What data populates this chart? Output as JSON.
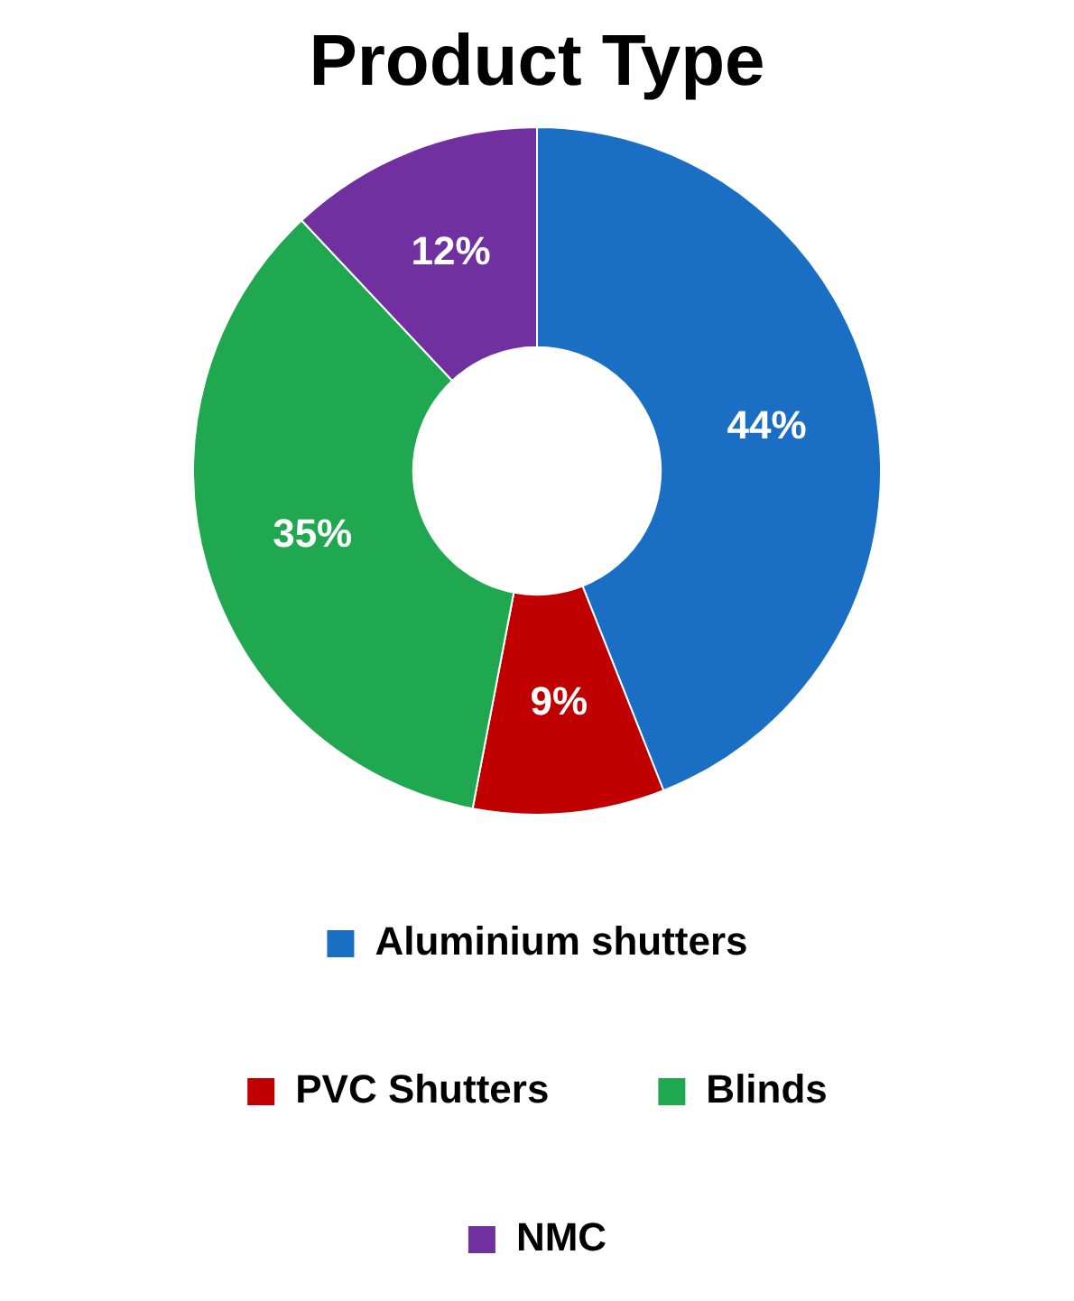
{
  "chart_data": {
    "type": "donut",
    "title": "Product Type",
    "categories": [
      "Aluminium shutters",
      "PVC Shutters",
      "Blinds",
      "NMC"
    ],
    "values": [
      44,
      9,
      35,
      12
    ],
    "colors": [
      "#1a6fc4",
      "#c00000",
      "#1fa84f",
      "#7030a0"
    ],
    "value_labels": [
      "44%",
      "9%",
      "35%",
      "12%"
    ],
    "legend": "bottom"
  }
}
